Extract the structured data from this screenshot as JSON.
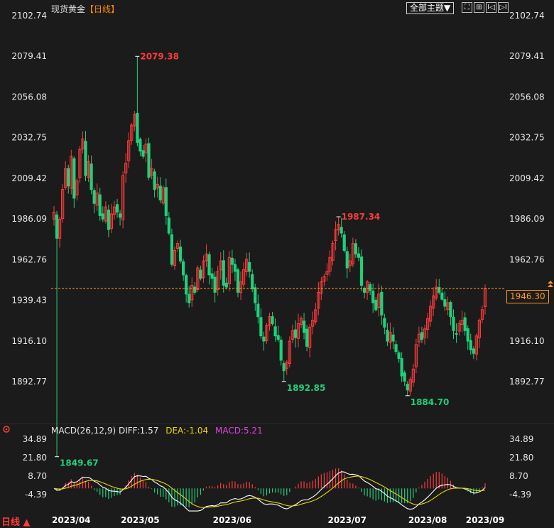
{
  "header": {
    "title": "现货黄金",
    "period": "【日线】",
    "theme_button": "全部主题▼",
    "tool_icons": [
      "⛶",
      "⊞",
      "I◁",
      "▷I"
    ]
  },
  "current_price": "1946.30",
  "macd_legend": {
    "name": "MACD(26,12,9)",
    "diff": "DIFF:1.57",
    "dea": "DEA:-1.04",
    "macd": "MACD:5.21"
  },
  "period_tab": "日线 ▲",
  "colors": {
    "up": "#ff3b3b",
    "down": "#21d07a",
    "diff_line": "#ffffff",
    "dea_line": "#e8d800",
    "current_line": "#ff9a1f",
    "background": "#1b1b1b"
  },
  "chart_data": [
    {
      "type": "candlestick",
      "y_ticks": [
        "2102.74",
        "2079.41",
        "2056.08",
        "2032.75",
        "2009.42",
        "1986.09",
        "1962.76",
        "1939.43",
        "1916.10",
        "1892.77"
      ],
      "ylim": [
        1884.7,
        2102.74
      ],
      "x_ticks": [
        "2023/04",
        "2023/05",
        "2023/06",
        "2023/07",
        "2023/08",
        "2023/09"
      ],
      "annotations": [
        {
          "label": "2079.38",
          "kind": "high",
          "index": 29
        },
        {
          "label": "1987.34",
          "kind": "high",
          "index": 99
        },
        {
          "label": "1849.67",
          "kind": "low",
          "index": 1
        },
        {
          "label": "1892.85",
          "kind": "low",
          "index": 80
        },
        {
          "label": "1884.70",
          "kind": "low",
          "index": 123
        }
      ],
      "current_price": 1946.3,
      "closes": [
        1990,
        1975,
        1986,
        2003,
        2015,
        2005,
        2022,
        1998,
        2008,
        2026,
        2032,
        2011,
        2019,
        2003,
        1995,
        2001,
        1988,
        1986,
        1993,
        1980,
        1989,
        1993,
        1990,
        1987,
        2011,
        2018,
        2031,
        2040,
        2046,
        2030,
        2025,
        2022,
        2029,
        2010,
        2015,
        2003,
        2006,
        1997,
        2004,
        1988,
        1978,
        1960,
        1968,
        1972,
        1962,
        1954,
        1943,
        1938,
        1948,
        1944,
        1958,
        1952,
        1962,
        1966,
        1954,
        1952,
        1944,
        1956,
        1962,
        1948,
        1947,
        1964,
        1960,
        1956,
        1944,
        1950,
        1957,
        1963,
        1956,
        1946,
        1938,
        1930,
        1919,
        1916,
        1925,
        1930,
        1926,
        1919,
        1917,
        1905,
        1899,
        1904,
        1916,
        1922,
        1918,
        1926,
        1929,
        1921,
        1913,
        1924,
        1928,
        1934,
        1944,
        1950,
        1953,
        1956,
        1964,
        1972,
        1980,
        1983,
        1978,
        1968,
        1958,
        1962,
        1972,
        1966,
        1964,
        1948,
        1944,
        1950,
        1945,
        1938,
        1934,
        1943,
        1931,
        1924,
        1916,
        1921,
        1916,
        1910,
        1906,
        1896,
        1893,
        1888,
        1894,
        1900,
        1914,
        1920,
        1917,
        1923,
        1929,
        1936,
        1942,
        1947,
        1944,
        1940,
        1936,
        1938,
        1930,
        1922,
        1920,
        1926,
        1928,
        1922,
        1916,
        1911,
        1909,
        1919,
        1928,
        1934,
        1946.3
      ]
    },
    {
      "type": "macd",
      "params": [
        26,
        12,
        9
      ],
      "y_ticks": [
        "34.89",
        "21.80",
        "8.70",
        "-4.39"
      ],
      "ylim": [
        -16,
        38
      ],
      "diff_last": 1.57,
      "dea_last": -1.04,
      "macd_last": 5.21
    }
  ]
}
